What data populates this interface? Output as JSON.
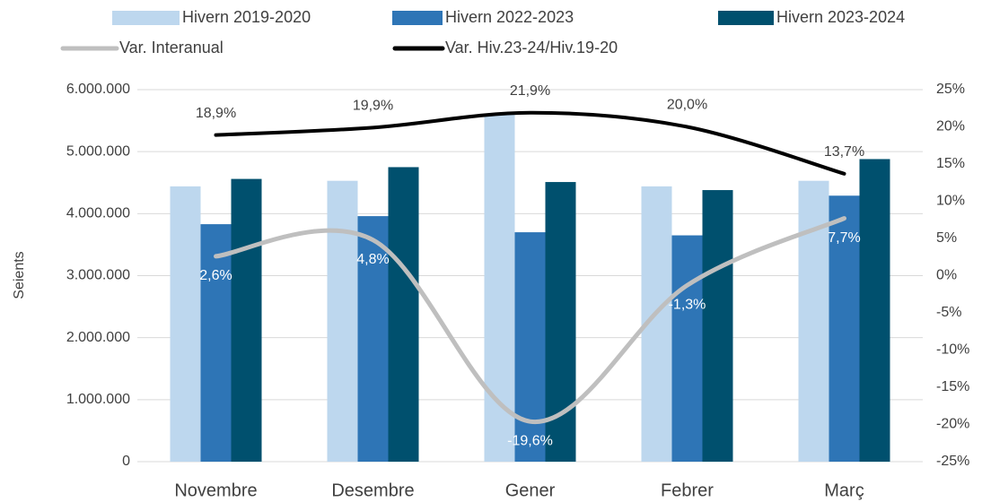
{
  "chart_data": {
    "type": "bar_line",
    "categories": [
      "Novembre",
      "Desembre",
      "Gener",
      "Febrer",
      "Març"
    ],
    "y_label": "Seients",
    "series": [
      {
        "name": "Hivern 2019-2020",
        "type": "bar",
        "color": "#bdd7ee",
        "values": [
          4440000,
          4530000,
          5610000,
          4440000,
          4530000
        ]
      },
      {
        "name": "Hivern 2022-2023",
        "type": "bar",
        "color": "#2e75b6",
        "values": [
          3830000,
          3960000,
          3700000,
          3650000,
          4290000
        ]
      },
      {
        "name": "Hivern 2023-2024",
        "type": "bar",
        "color": "#00506e",
        "values": [
          4560000,
          4750000,
          4510000,
          4380000,
          4880000
        ]
      },
      {
        "name": "Var. Interanual",
        "type": "line",
        "axis": "y2",
        "color": "#bfbfbf",
        "values": [
          2.6,
          4.8,
          -19.6,
          -1.3,
          7.7
        ],
        "value_labels": [
          "2,6%",
          "4,8%",
          "-19,6%",
          "-1,3%",
          "7,7%"
        ]
      },
      {
        "name": "Var. Hiv.23-24/Hiv.19-20",
        "type": "line",
        "axis": "y2",
        "color": "#000000",
        "values": [
          18.9,
          19.9,
          21.9,
          20.0,
          13.7
        ],
        "value_labels": [
          "18,9%",
          "19,9%",
          "21,9%",
          "20,0%",
          "13,7%"
        ]
      }
    ],
    "ylim": [
      0,
      6000000
    ],
    "yticks": [
      0,
      {
        "value": 1000000,
        "label": "1.000.000"
      },
      {
        "value": 2000000,
        "label": "2.000.000"
      },
      {
        "value": 3000000,
        "label": "3.000.000"
      },
      {
        "value": 4000000,
        "label": "4.000.000"
      },
      {
        "value": 5000000,
        "label": "5.000.000"
      },
      {
        "value": 6000000,
        "label": "6.000.000"
      }
    ],
    "y2lim": [
      -25,
      25
    ],
    "y2ticks": [
      {
        "value": -25,
        "label": "-25%"
      },
      {
        "value": -20,
        "label": "-20%"
      },
      {
        "value": -15,
        "label": "-15%"
      },
      {
        "value": -10,
        "label": "-10%"
      },
      {
        "value": -5,
        "label": "-5%"
      },
      {
        "value": 0,
        "label": "0%"
      },
      {
        "value": 5,
        "label": "5%"
      },
      {
        "value": 10,
        "label": "10%"
      },
      {
        "value": 15,
        "label": "15%"
      },
      {
        "value": 20,
        "label": "20%"
      },
      {
        "value": 25,
        "label": "25%"
      }
    ],
    "grid": true
  }
}
